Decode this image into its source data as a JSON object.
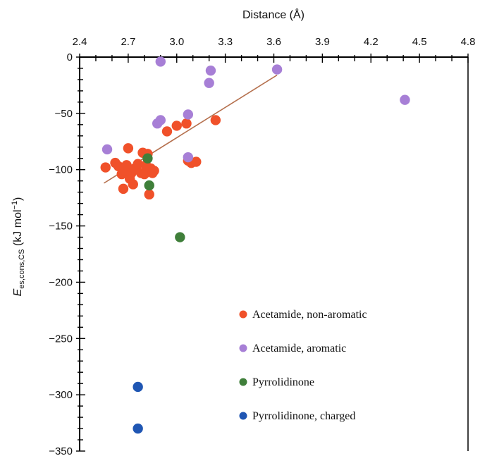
{
  "chart_data": {
    "type": "scatter",
    "title": "",
    "xlabel": "Distance (Å)",
    "ylabel": "E",
    "ylabel_sub": "es,cons,CS",
    "ylabel_unit": " (kJ mol",
    "ylabel_sup": "−1",
    "ylabel_close": ")",
    "xlim": [
      2.4,
      4.8
    ],
    "ylim": [
      -350,
      0
    ],
    "x_axis_position": "top",
    "grid": false,
    "legend_position": "bottom-right",
    "x_ticks": [
      {
        "value": 2.4,
        "label": "2.4"
      },
      {
        "value": 2.7,
        "label": "2.7"
      },
      {
        "value": 3.0,
        "label": "3.0"
      },
      {
        "value": 3.3,
        "label": "3.3"
      },
      {
        "value": 3.6,
        "label": "3.6"
      },
      {
        "value": 3.9,
        "label": "3.9"
      },
      {
        "value": 4.2,
        "label": "4.2"
      },
      {
        "value": 4.5,
        "label": "4.5"
      },
      {
        "value": 4.8,
        "label": "4.8"
      }
    ],
    "y_ticks": [
      {
        "value": 0,
        "label": "0"
      },
      {
        "value": -50,
        "label": "−50"
      },
      {
        "value": -100,
        "label": "−100"
      },
      {
        "value": -150,
        "label": "−150"
      },
      {
        "value": -200,
        "label": "−200"
      },
      {
        "value": -250,
        "label": "−250"
      },
      {
        "value": -300,
        "label": "−300"
      },
      {
        "value": -350,
        "label": "−350"
      }
    ],
    "series": [
      {
        "name": "Acetamide, non-aromatic",
        "color": "#f0512a",
        "points": [
          [
            2.56,
            -98
          ],
          [
            2.62,
            -94
          ],
          [
            2.64,
            -97
          ],
          [
            2.66,
            -104
          ],
          [
            2.67,
            -117
          ],
          [
            2.68,
            -101
          ],
          [
            2.69,
            -96
          ],
          [
            2.7,
            -81
          ],
          [
            2.71,
            -108
          ],
          [
            2.72,
            -103
          ],
          [
            2.73,
            -113
          ],
          [
            2.74,
            -99
          ],
          [
            2.76,
            -95
          ],
          [
            2.78,
            -103
          ],
          [
            2.79,
            -85
          ],
          [
            2.8,
            -104
          ],
          [
            2.81,
            -96
          ],
          [
            2.82,
            -86
          ],
          [
            2.83,
            -122
          ],
          [
            2.84,
            -99
          ],
          [
            2.85,
            -103
          ],
          [
            2.86,
            -101
          ],
          [
            2.94,
            -66
          ],
          [
            3.0,
            -61
          ],
          [
            3.06,
            -59
          ],
          [
            3.07,
            -92
          ],
          [
            3.09,
            -94
          ],
          [
            3.12,
            -93
          ],
          [
            3.24,
            -56
          ]
        ]
      },
      {
        "name": "Acetamide, aromatic",
        "color": "#a77fd6",
        "points": [
          [
            2.57,
            -82
          ],
          [
            2.88,
            -59
          ],
          [
            2.9,
            -56
          ],
          [
            2.9,
            -4
          ],
          [
            3.07,
            -51
          ],
          [
            3.07,
            -89
          ],
          [
            3.2,
            -23
          ],
          [
            3.21,
            -12
          ],
          [
            3.62,
            -11
          ],
          [
            4.41,
            -38
          ]
        ]
      },
      {
        "name": "Pyrrolidinone",
        "color": "#3f7f3a",
        "points": [
          [
            2.82,
            -90
          ],
          [
            2.83,
            -114
          ],
          [
            3.02,
            -160
          ]
        ]
      },
      {
        "name": "Pyrrolidinone, charged",
        "color": "#1f56b3",
        "points": [
          [
            2.76,
            -293
          ],
          [
            2.76,
            -330
          ]
        ]
      }
    ],
    "trendline": {
      "color": "#b5704e",
      "from": [
        2.55,
        -112
      ],
      "to": [
        3.62,
        -16
      ]
    }
  }
}
